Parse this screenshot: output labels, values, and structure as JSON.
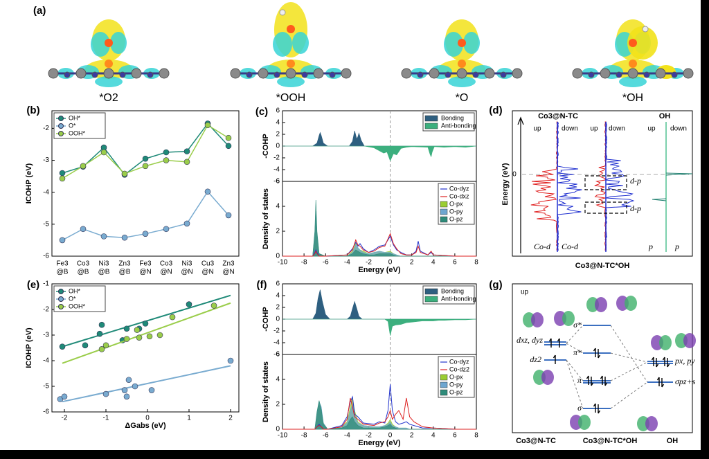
{
  "panel_a": {
    "label": "(a)",
    "captions": [
      "*O2",
      "*OOH",
      "*O",
      "*OH"
    ]
  },
  "chart_data": [
    {
      "type": "line",
      "label": "(b)",
      "ylabel": "ICOHP (eV)",
      "categories": [
        [
          "Fe3",
          "@B"
        ],
        [
          "Co3",
          "@B"
        ],
        [
          "Ni3",
          "@B"
        ],
        [
          "Zn3",
          "@B"
        ],
        [
          "Fe3",
          "@N"
        ],
        [
          "Co3",
          "@N"
        ],
        [
          "Ni3",
          "@N"
        ],
        [
          "Cu3",
          "@N"
        ],
        [
          "Zn3",
          "@N"
        ]
      ],
      "series": [
        {
          "name": "OH*",
          "color": "#1f8a78",
          "values": [
            -3.4,
            -3.2,
            -2.6,
            -3.45,
            -2.95,
            -2.75,
            -2.72,
            -1.85,
            -2.55
          ]
        },
        {
          "name": "O*",
          "color": "#79abd0",
          "values": [
            -5.5,
            -5.15,
            -5.38,
            -5.42,
            -5.3,
            -5.15,
            -4.98,
            -3.98,
            -4.72
          ]
        },
        {
          "name": "OOH*",
          "color": "#9acd4a",
          "values": [
            -3.57,
            -3.18,
            -2.75,
            -3.42,
            -3.18,
            -3.0,
            -3.05,
            -1.9,
            -2.3
          ]
        }
      ],
      "ylim": [
        -6,
        -1.45
      ],
      "yticks": [
        -6,
        -5,
        -4,
        -3,
        -2
      ],
      "legend": "upper left"
    },
    {
      "type": "area",
      "label": "(c)",
      "ylabel": "-COHP",
      "x": [
        -10,
        -7.2,
        -6.8,
        -6.6,
        -6.5,
        -6.4,
        -6.2,
        -5.8,
        -3.8,
        -3.5,
        -3.3,
        -3.1,
        -3.0,
        -2.9,
        -2.7,
        -2.4,
        -1.5,
        -1.0,
        -0.6,
        -0.3,
        0,
        0.3,
        0.6,
        1.0,
        1.5,
        2.0,
        3.5,
        3.7,
        3.8,
        3.9,
        4.1,
        5,
        6,
        7,
        8
      ],
      "series": [
        {
          "name": "Bonding",
          "color": "#2e5f80",
          "values": [
            0,
            0,
            0.5,
            1.8,
            2.3,
            1.8,
            0.5,
            0,
            0,
            0.8,
            2.6,
            1.2,
            1.6,
            2.2,
            1.0,
            0,
            0,
            0,
            0,
            0,
            0,
            0,
            0,
            0,
            0,
            0,
            0,
            0,
            0,
            0,
            0,
            0,
            0,
            0,
            0
          ]
        },
        {
          "name": "Anti-bonding",
          "color": "#3caf7e",
          "values": [
            0,
            0,
            0,
            0,
            0,
            0,
            0,
            0,
            0,
            0,
            0,
            0,
            0,
            0,
            0,
            0,
            -0.3,
            -0.8,
            -1.2,
            -1.0,
            -2.5,
            -1.3,
            -1.5,
            -0.4,
            -0.2,
            -0.1,
            -0.2,
            -1.4,
            -1.8,
            -1.0,
            -0.1,
            -0.2,
            -0.1,
            -0.2,
            0
          ]
        }
      ],
      "xlim": [
        -10,
        8
      ],
      "ylim": [
        -6,
        6
      ],
      "yticks": [
        -6,
        -4,
        -2,
        0,
        2,
        4,
        6
      ],
      "fermi_line": 0,
      "legend": "upper right"
    },
    {
      "type": "density",
      "ylabel": "Density of states",
      "xlabel": "Energy (eV)",
      "x": [
        -10,
        -7.2,
        -7.0,
        -6.9,
        -6.8,
        -6.6,
        -6,
        -4,
        -3.5,
        -3.2,
        -3.0,
        -2.8,
        -2.5,
        -2,
        -1.5,
        -1,
        -0.5,
        0,
        0.3,
        0.6,
        1,
        1.5,
        2,
        2.4,
        2.6,
        2.8,
        3.5,
        3.8,
        4,
        5,
        6,
        8
      ],
      "series": [
        {
          "name": "Co-dyz",
          "color": "#2233cc",
          "style": "line",
          "values": [
            0,
            0,
            0.3,
            0.5,
            0.3,
            0,
            0,
            0.1,
            0.6,
            1.1,
            0.8,
            1.0,
            0.6,
            0.3,
            0.5,
            0.8,
            0.9,
            1.6,
            0.9,
            0.5,
            0.3,
            0.1,
            0.1,
            0.4,
            1.2,
            0.4,
            0.1,
            0.3,
            0.1,
            0.05,
            0,
            0
          ]
        },
        {
          "name": "Co-dxz",
          "color": "#dd2222",
          "style": "line",
          "values": [
            0,
            0,
            0.2,
            0.4,
            0.2,
            0,
            0,
            0.1,
            0.5,
            1.3,
            0.9,
            0.8,
            0.5,
            0.3,
            0.4,
            0.7,
            0.8,
            1.8,
            1.0,
            0.6,
            0.2,
            0.1,
            0.1,
            0.3,
            0.8,
            0.3,
            0.1,
            0.4,
            0.1,
            0.05,
            0,
            0
          ]
        },
        {
          "name": "O-px",
          "color": "#9acd32",
          "style": "fill",
          "values": [
            0,
            0,
            1.5,
            3.5,
            1.5,
            0.2,
            0,
            0,
            0.4,
            1.0,
            0.6,
            0.5,
            0.4,
            0.2,
            0.3,
            0.4,
            0.3,
            0.4,
            0.2,
            0.1,
            0,
            0,
            0,
            0,
            0,
            0,
            0,
            0,
            0,
            0,
            0,
            0
          ]
        },
        {
          "name": "O-py",
          "color": "#6ea6d0",
          "style": "fill",
          "values": [
            0,
            0,
            1.8,
            3.6,
            1.8,
            0.2,
            0,
            0,
            0.3,
            0.9,
            0.7,
            0.5,
            0.3,
            0.2,
            0.3,
            0.4,
            0.3,
            0.3,
            0.2,
            0.1,
            0,
            0,
            0,
            0,
            0,
            0,
            0,
            0,
            0,
            0,
            0,
            0
          ]
        },
        {
          "name": "O-pz",
          "color": "#2e8b7a",
          "style": "fill",
          "values": [
            0,
            0,
            2.0,
            4.5,
            2.0,
            0.2,
            0,
            0,
            0.2,
            0.5,
            0.4,
            0.3,
            0.2,
            0.1,
            0.1,
            0.2,
            0.2,
            0.2,
            0.1,
            0,
            0,
            0,
            0,
            0,
            0,
            0,
            0,
            0,
            0,
            0,
            0,
            0
          ]
        }
      ],
      "xlim": [
        -10,
        8
      ],
      "xticks": [
        -10,
        -8,
        -6,
        -4,
        -2,
        0,
        2,
        4,
        6,
        8
      ],
      "ylim": [
        0,
        6
      ],
      "yticks": [
        0,
        2,
        4,
        6
      ],
      "fermi_line": 0,
      "legend": "upper right"
    },
    {
      "type": "scatter",
      "label": "(e)",
      "ylabel": "ICOHP (eV)",
      "xlabel": "ΔGabs (eV)",
      "series": [
        {
          "name": "OH*",
          "color": "#1f8a78",
          "x": [
            -2.05,
            -1.5,
            -1.1,
            -1.15,
            -0.6,
            -0.5,
            -0.2,
            -0.05,
            1.0
          ],
          "values": [
            -3.45,
            -3.4,
            -2.6,
            -2.95,
            -3.2,
            -2.75,
            -2.75,
            -2.55,
            -1.8
          ],
          "fit_x": [
            -2.05,
            2
          ],
          "fit_y": [
            -3.45,
            -1.45
          ]
        },
        {
          "name": "O*",
          "color": "#79abd0",
          "x": [
            -2.1,
            -2.0,
            -1.0,
            -0.55,
            -0.5,
            -0.45,
            -0.3,
            0.1,
            2.0
          ],
          "values": [
            -5.5,
            -5.4,
            -5.3,
            -5.15,
            -5.4,
            -4.75,
            -5.0,
            -5.15,
            -4.0
          ],
          "fit_x": [
            -2.05,
            2
          ],
          "fit_y": [
            -5.6,
            -4.2
          ]
        },
        {
          "name": "OOH*",
          "color": "#9acd4a",
          "x": [
            -1.1,
            -1.0,
            -0.5,
            -0.25,
            -0.2,
            0.05,
            0.3,
            0.6,
            1.6
          ],
          "values": [
            -3.55,
            -3.4,
            -3.15,
            -2.8,
            -3.1,
            -3.05,
            -3.0,
            -2.3,
            -1.85
          ],
          "fit_x": [
            -2.05,
            2
          ],
          "fit_y": [
            -4.1,
            -1.75
          ]
        }
      ],
      "xlim": [
        -2.3,
        2.2
      ],
      "xticks": [
        -2,
        -1,
        0,
        1,
        2
      ],
      "ylim": [
        -6,
        -1
      ],
      "yticks": [
        -6,
        -5,
        -4,
        -3,
        -2,
        -1
      ],
      "legend": "upper left"
    },
    {
      "type": "area",
      "label": "(f)",
      "ylabel": "-COHP",
      "x": [
        -10,
        -7.2,
        -6.9,
        -6.7,
        -6.5,
        -6.3,
        -6.0,
        -5.6,
        -4,
        -3.7,
        -3.5,
        -3.3,
        -3.1,
        -2.9,
        -2.6,
        -0.5,
        -0.2,
        0,
        0.2,
        0.5,
        1,
        1.5,
        2,
        3,
        4,
        4.5,
        5,
        6,
        7,
        8
      ],
      "series": [
        {
          "name": "Bonding",
          "color": "#2e5f80",
          "values": [
            0,
            0,
            1.0,
            3.5,
            5.0,
            3.0,
            0.8,
            0,
            0,
            0.5,
            1.8,
            3.0,
            1.8,
            0.5,
            0,
            0,
            0,
            0,
            0,
            0,
            0,
            0,
            0,
            0,
            0,
            0,
            0,
            0,
            0,
            0
          ]
        },
        {
          "name": "Anti-bonding",
          "color": "#3caf7e",
          "values": [
            0,
            0,
            0,
            0,
            0,
            0,
            0,
            0,
            0,
            0,
            0,
            0,
            0,
            0,
            0,
            0,
            -0.4,
            -2.8,
            -1.2,
            -1.0,
            -0.9,
            -0.6,
            -0.5,
            -0.3,
            -0.3,
            -0.2,
            -0.2,
            -0.1,
            -0.1,
            0
          ]
        }
      ],
      "xlim": [
        -10,
        8
      ],
      "ylim": [
        -6,
        6
      ],
      "yticks": [
        -6,
        -4,
        -2,
        0,
        2,
        4,
        6
      ],
      "fermi_line": 0,
      "legend": "upper right"
    },
    {
      "type": "density",
      "ylabel": "Density of states",
      "xlabel": "Energy (eV)",
      "x": [
        -10,
        -7,
        -6.8,
        -6.6,
        -6.4,
        -6.2,
        -5.8,
        -4.5,
        -4,
        -3.7,
        -3.5,
        -3.3,
        -3,
        -2.5,
        -1.5,
        -1,
        -0.5,
        -0.2,
        0,
        0.2,
        0.5,
        0.8,
        1.2,
        1.5,
        1.8,
        2.2,
        3,
        4,
        5,
        6,
        8
      ],
      "series": [
        {
          "name": "Co-dyz",
          "color": "#2233cc",
          "style": "line",
          "values": [
            0,
            0,
            0.2,
            0.4,
            0.2,
            0,
            0,
            0.3,
            1.0,
            2.2,
            2.6,
            1.2,
            1.0,
            0.5,
            0.4,
            0.6,
            0.5,
            1.5,
            3.6,
            1.5,
            0.6,
            0.4,
            0.5,
            0.6,
            0.4,
            0.3,
            0.1,
            0.1,
            0.05,
            0,
            0
          ]
        },
        {
          "name": "Co-dz2",
          "color": "#dd2222",
          "style": "line",
          "values": [
            0,
            0,
            0.2,
            0.3,
            0.2,
            0,
            0,
            0.2,
            0.8,
            2.5,
            1.8,
            1.0,
            0.8,
            0.4,
            0.3,
            0.5,
            0.6,
            1.0,
            1.5,
            0.8,
            1.2,
            1.5,
            0.8,
            2.5,
            1.0,
            0.6,
            0.2,
            0.1,
            0.05,
            0,
            0
          ]
        },
        {
          "name": "O-px",
          "color": "#9acd32",
          "style": "fill",
          "values": [
            0,
            0,
            1.0,
            2.0,
            1.5,
            0.5,
            0,
            0.2,
            0.6,
            1.8,
            2.6,
            1.5,
            0.6,
            0.3,
            0.2,
            0.2,
            0.3,
            0.5,
            0.8,
            0.4,
            0.2,
            0.1,
            0.1,
            0.1,
            0,
            0,
            0,
            0,
            0,
            0,
            0
          ]
        },
        {
          "name": "O-py",
          "color": "#6ea6d0",
          "style": "fill",
          "values": [
            0,
            0,
            1.2,
            2.2,
            1.8,
            0.5,
            0,
            0.2,
            0.5,
            1.5,
            2.0,
            1.2,
            0.5,
            0.3,
            0.2,
            0.2,
            0.3,
            0.4,
            0.6,
            0.3,
            0.2,
            0.1,
            0.1,
            0.1,
            0,
            0,
            0,
            0,
            0,
            0,
            0
          ]
        },
        {
          "name": "O-pz",
          "color": "#2e8b7a",
          "style": "fill",
          "values": [
            0,
            0,
            1.4,
            2.3,
            1.6,
            0.4,
            0,
            0.1,
            0.3,
            0.8,
            1.0,
            0.6,
            0.3,
            0.1,
            0.1,
            0.1,
            0.2,
            0.3,
            0.4,
            0.2,
            0.1,
            0,
            0,
            0,
            0,
            0,
            0,
            0,
            0,
            0,
            0
          ]
        }
      ],
      "xlim": [
        -10,
        8
      ],
      "xticks": [
        -10,
        -8,
        -6,
        -4,
        -2,
        0,
        2,
        4,
        6,
        8
      ],
      "ylim": [
        0,
        6
      ],
      "yticks": [
        0,
        2,
        4,
        6
      ],
      "fermi_line": 0,
      "legend": "upper right"
    }
  ],
  "panel_d": {
    "label": "(d)",
    "titles": [
      "Co3@N-TC",
      "OH"
    ],
    "spin": [
      "up",
      "down",
      "up",
      "down",
      "up",
      "down"
    ],
    "ylabel": "Energy (eV)",
    "zero": "0",
    "annotations": [
      "d-p",
      "d-p"
    ],
    "curve_labels": [
      "Co-d",
      "Co-d",
      "p",
      "p"
    ],
    "caption": "Co3@N-TC*OH"
  },
  "panel_g": {
    "label": "(g)",
    "spin": "up",
    "left_levels": [
      "dxz, dyz",
      "dz2"
    ],
    "mo_levels": [
      "σ*",
      "π*",
      "π",
      "σ"
    ],
    "right_levels": [
      "px, py",
      "σpz+s"
    ]
  },
  "captions": [
    "Co3@N-TC",
    "Co3@N-TC*OH",
    "OH"
  ]
}
